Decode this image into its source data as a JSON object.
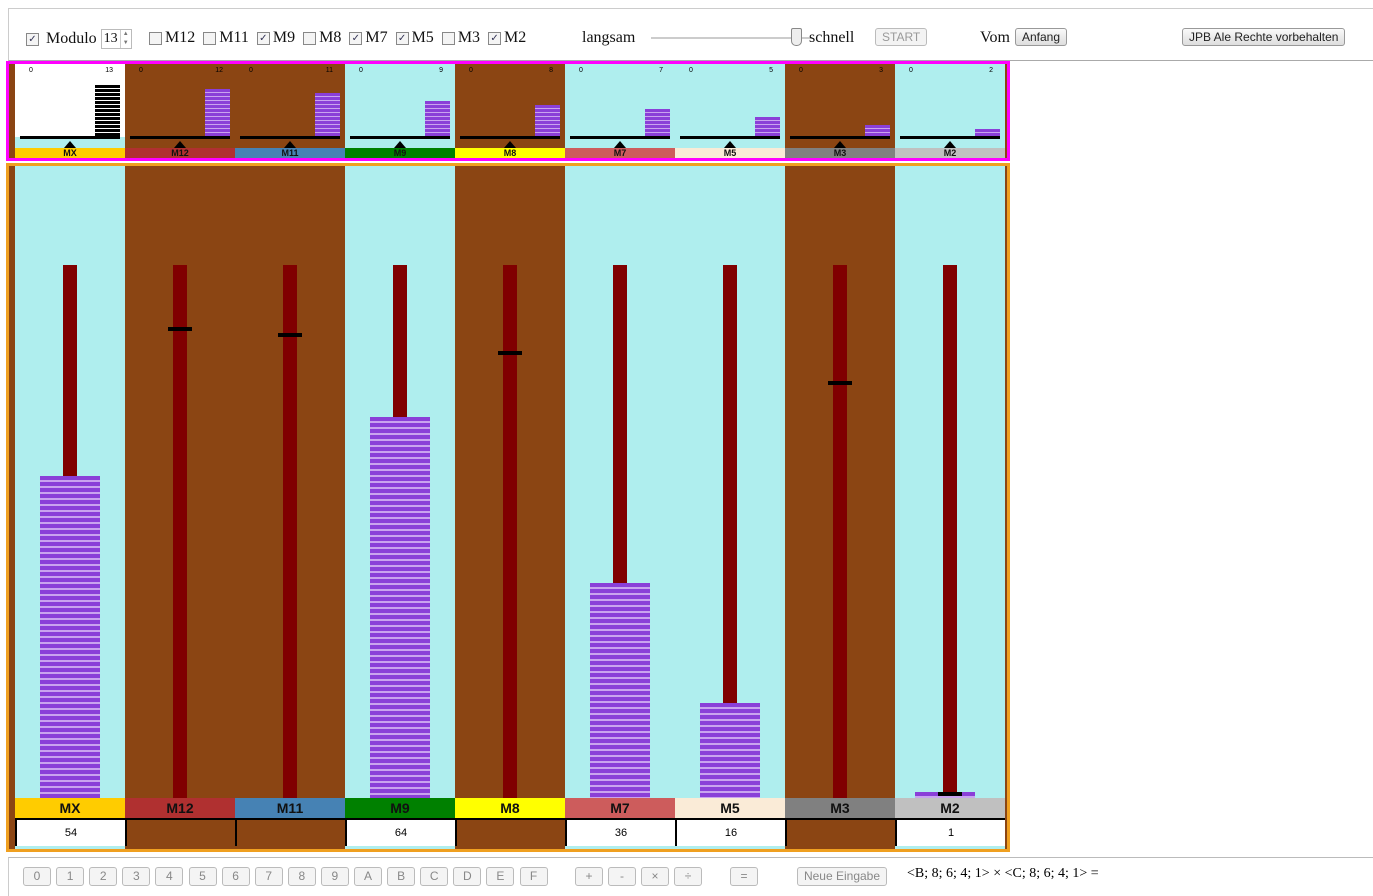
{
  "toolbar": {
    "modulo_label": "Modulo",
    "modulo_checked": true,
    "modulo_value": "13",
    "moduli": [
      {
        "label": "M12",
        "checked": false
      },
      {
        "label": "M11",
        "checked": false
      },
      {
        "label": "M9",
        "checked": true
      },
      {
        "label": "M8",
        "checked": false
      },
      {
        "label": "M7",
        "checked": true
      },
      {
        "label": "M5",
        "checked": true
      },
      {
        "label": "M3",
        "checked": false
      },
      {
        "label": "M2",
        "checked": true
      }
    ],
    "slow_label": "langsam",
    "fast_label": "schnell",
    "speed_percent": 90,
    "start_label": "START",
    "from_label": "Vom",
    "from_button": "Anfang",
    "rights_button": "JPB Ale Rechte vorbehalten"
  },
  "columns": [
    {
      "label": "MX",
      "modulus": 13,
      "color": "#ffcc00",
      "active": true,
      "value": "54",
      "level": 54,
      "marker": null
    },
    {
      "label": "M12",
      "modulus": 12,
      "color": "#b03030",
      "active": false,
      "value": "",
      "level": null,
      "marker": 78
    },
    {
      "label": "M11",
      "modulus": 11,
      "color": "#4682b4",
      "active": false,
      "value": "",
      "level": null,
      "marker": 77
    },
    {
      "label": "M9",
      "modulus": 9,
      "color": "#008000",
      "active": true,
      "value": "64",
      "level": 64,
      "marker": null
    },
    {
      "label": "M8",
      "modulus": 8,
      "color": "#ffff00",
      "active": false,
      "value": "",
      "level": null,
      "marker": 74
    },
    {
      "label": "M7",
      "modulus": 7,
      "color": "#cd5c5c",
      "active": true,
      "value": "36",
      "level": 36,
      "marker": null
    },
    {
      "label": "M5",
      "modulus": 5,
      "color": "#faebd7",
      "active": true,
      "value": "16",
      "level": 16,
      "marker": null
    },
    {
      "label": "M3",
      "modulus": 3,
      "color": "#808080",
      "active": false,
      "value": "",
      "level": null,
      "marker": 69
    },
    {
      "label": "M2",
      "modulus": 2,
      "color": "#c0c0c0",
      "active": true,
      "value": "1",
      "level": 1,
      "marker": 0
    }
  ],
  "keypad": [
    "0",
    "1",
    "2",
    "3",
    "4",
    "5",
    "6",
    "7",
    "8",
    "9",
    "A",
    "B",
    "C",
    "D",
    "E",
    "F"
  ],
  "operators": [
    "+",
    "-",
    "×",
    "÷"
  ],
  "equals": "=",
  "new_input": "Neue Eingabe",
  "expression": "<B; 8; 6; 4; 1> × <C; 8; 6; 4; 1> ="
}
